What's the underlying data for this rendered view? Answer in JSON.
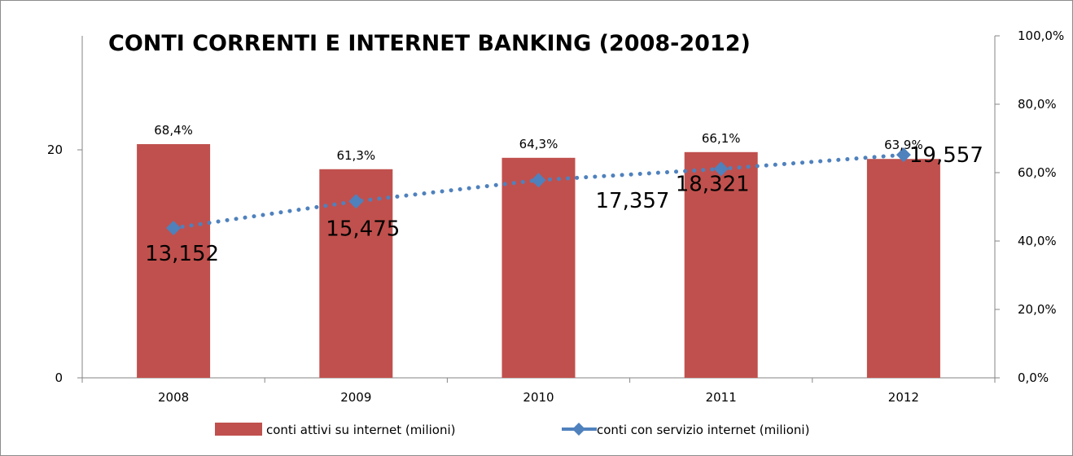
{
  "chart_data": {
    "type": "bar",
    "title": "CONTI CORRENTI E INTERNET BANKING (2008-2012)",
    "categories": [
      "2008",
      "2009",
      "2010",
      "2011",
      "2012"
    ],
    "left_axis": {
      "ylim": [
        0,
        30
      ],
      "ticks": [
        0,
        20
      ],
      "tick_labels": [
        "0",
        "20"
      ]
    },
    "right_axis": {
      "ylim": [
        0,
        100
      ],
      "ticks": [
        0,
        20,
        40,
        60,
        80,
        100
      ],
      "tick_labels": [
        "0,0%",
        "20,0%",
        "40,0%",
        "60,0%",
        "80,0%",
        "100,0%"
      ]
    },
    "series": [
      {
        "name": "conti attivi su internet (milioni)",
        "kind": "bar",
        "axis": "left",
        "color": "#c0504d",
        "values": [
          20.5,
          18.3,
          19.3,
          19.8,
          19.2
        ],
        "data_labels": [
          "68,4%",
          "61,3%",
          "64,3%",
          "66,1%",
          "63,9%"
        ]
      },
      {
        "name": "conti con servizio internet (milioni)",
        "kind": "line",
        "axis": "right",
        "style": "dotted",
        "marker": "diamond",
        "color": "#4f81bd",
        "values": [
          43.8,
          51.6,
          57.8,
          61.1,
          65.2
        ],
        "data_labels": [
          "13,152",
          "15,475",
          "17,357",
          "18,321",
          "19,557"
        ]
      }
    ],
    "legend": "bottom",
    "grid": false
  }
}
